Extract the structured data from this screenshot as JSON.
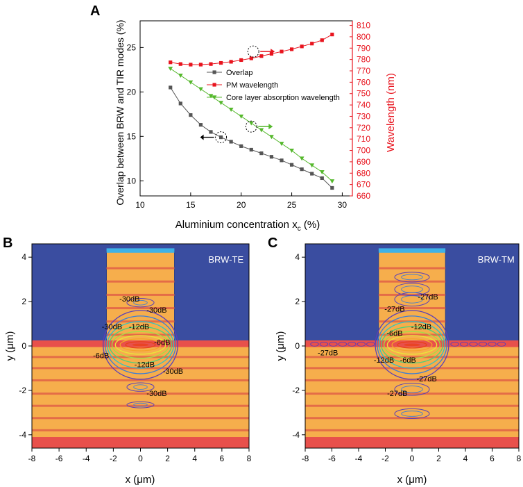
{
  "panel_labels": {
    "a": "A",
    "b": "B",
    "c": "C"
  },
  "colors": {
    "overlap": "#555555",
    "pm": "#e8141e",
    "absorption": "#55b82c",
    "cladding": "#3a4da0",
    "layer_light": "#f6ae4c",
    "layer_dark": "#e46c47",
    "core": "#e8504b",
    "cap": "#3fb2e6"
  },
  "chart_data": [
    {
      "type": "line",
      "title": "",
      "xlabel": "Aluminium concentration x",
      "xlabel_sub": "c",
      "xlabel_unit": " (%)",
      "ylabel": "Overlap between BRW and TIR modes (%)",
      "y2label": "Wavelength (nm)",
      "xlim": [
        10,
        31
      ],
      "ylim": [
        8.3,
        28
      ],
      "y2lim": [
        660,
        814
      ],
      "xticks": [
        "10",
        "15",
        "20",
        "25",
        "30"
      ],
      "yticks": [
        "10",
        "15",
        "20",
        "25"
      ],
      "y2ticks": [
        "660",
        "670",
        "680",
        "690",
        "700",
        "710",
        "720",
        "730",
        "740",
        "750",
        "760",
        "770",
        "780",
        "790",
        "800",
        "810"
      ],
      "x": [
        13,
        14,
        15,
        16,
        17,
        18,
        19,
        20,
        21,
        22,
        23,
        24,
        25,
        26,
        27,
        28,
        29
      ],
      "series": [
        {
          "name": "Overlap",
          "axis": "left",
          "marker": "square",
          "values": [
            20.5,
            18.7,
            17.4,
            16.3,
            15.5,
            14.9,
            14.4,
            13.9,
            13.5,
            13.1,
            12.7,
            12.3,
            11.8,
            11.3,
            10.8,
            10.3,
            9.2
          ]
        },
        {
          "name": "PM wavelength",
          "axis": "right",
          "marker": "square",
          "values": [
            777.5,
            776,
            775.5,
            775.5,
            776,
            777,
            778,
            779.5,
            781,
            783,
            785,
            787,
            789,
            791.5,
            794,
            797,
            802
          ]
        },
        {
          "name": "Core layer absorption wavelength",
          "axis": "right",
          "marker": "triangle",
          "values": [
            772,
            766,
            760,
            754,
            748,
            742,
            736,
            730,
            724,
            718,
            712,
            706,
            700,
            693,
            687,
            681,
            673
          ]
        }
      ]
    },
    {
      "type": "heatmap",
      "label": "BRW-TE",
      "xlabel": "x (μm)",
      "ylabel": "y (μm)",
      "xlim": [
        -8,
        8
      ],
      "ylim": [
        -4.6,
        4.6
      ],
      "xticks": [
        "-8",
        "-6",
        "-4",
        "-2",
        "0",
        "2",
        "4",
        "6",
        "8"
      ],
      "yticks": [
        "-4",
        "-2",
        "0",
        "2",
        "4"
      ],
      "contour_labels": [
        "-30dB",
        "-30dB",
        "-30dB",
        "-12dB",
        "-6dB",
        "-6dB",
        "-12dB",
        "-30dB",
        "-30dB"
      ]
    },
    {
      "type": "heatmap",
      "label": "BRW-TM",
      "xlabel": "x (μm)",
      "ylabel": "y (μm)",
      "xlim": [
        -8,
        8
      ],
      "ylim": [
        -4.6,
        4.6
      ],
      "xticks": [
        "-8",
        "-6",
        "-4",
        "-2",
        "0",
        "2",
        "4",
        "6",
        "8"
      ],
      "yticks": [
        "-4",
        "-2",
        "0",
        "2",
        "4"
      ],
      "contour_labels": [
        "-27dB",
        "-27dB",
        "-12dB",
        "-6dB",
        "-27dB",
        "-12dB",
        "-6dB",
        "-27dB",
        "-27dB"
      ]
    }
  ]
}
